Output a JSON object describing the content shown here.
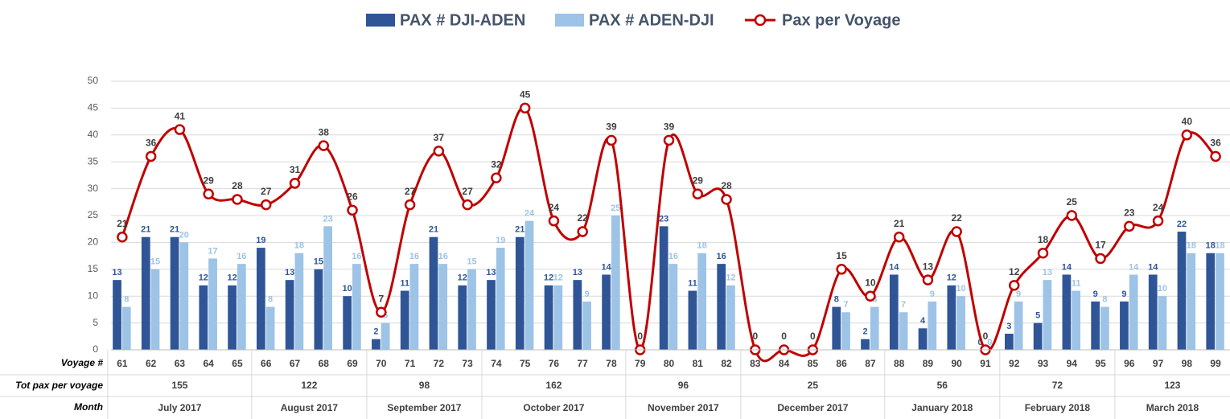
{
  "chart_data": {
    "type": "bar-line",
    "ylim": [
      0,
      50
    ],
    "yticks": [
      0,
      5,
      10,
      15,
      20,
      25,
      30,
      35,
      40,
      45,
      50
    ],
    "grid": true,
    "legend": "top",
    "row_labels": [
      "Voyage #",
      "Tot pax per voyage",
      "Month"
    ],
    "months": [
      {
        "name": "July 2017",
        "total": 155,
        "categories": [
          "61",
          "62",
          "63",
          "64",
          "65"
        ]
      },
      {
        "name": "August 2017",
        "total": 122,
        "categories": [
          "66",
          "67",
          "68",
          "69"
        ]
      },
      {
        "name": "September 2017",
        "total": 98,
        "categories": [
          "70",
          "71",
          "72",
          "73"
        ]
      },
      {
        "name": "October 2017",
        "total": 162,
        "categories": [
          "74",
          "75",
          "76",
          "77",
          "78"
        ]
      },
      {
        "name": "November 2017",
        "total": 96,
        "categories": [
          "79",
          "80",
          "81",
          "82"
        ]
      },
      {
        "name": "December 2017",
        "total": 25,
        "categories": [
          "83",
          "84",
          "85",
          "86",
          "87"
        ]
      },
      {
        "name": "January 2018",
        "total": 56,
        "categories": [
          "88",
          "89",
          "90",
          "91"
        ]
      },
      {
        "name": "February 2018",
        "total": 72,
        "categories": [
          "92",
          "93",
          "94",
          "95"
        ]
      },
      {
        "name": "March 2018",
        "total": 123,
        "categories": [
          "96",
          "97",
          "98",
          "99"
        ]
      }
    ],
    "series": [
      {
        "name": "PAX # DJI-ADEN",
        "type": "bar",
        "color": "#2f5597",
        "values": [
          13,
          21,
          21,
          12,
          12,
          19,
          13,
          15,
          10,
          2,
          11,
          21,
          12,
          13,
          21,
          12,
          13,
          14,
          null,
          23,
          11,
          16,
          null,
          null,
          null,
          8,
          2,
          14,
          4,
          12,
          0,
          3,
          5,
          14,
          9,
          9,
          14,
          22,
          18
        ]
      },
      {
        "name": "PAX # ADEN-DJI",
        "type": "bar",
        "color": "#9dc3e6",
        "values": [
          8,
          15,
          20,
          17,
          16,
          8,
          18,
          23,
          16,
          5,
          16,
          16,
          15,
          19,
          24,
          12,
          9,
          25,
          null,
          16,
          18,
          12,
          null,
          null,
          null,
          7,
          8,
          7,
          9,
          10,
          0,
          9,
          13,
          11,
          8,
          14,
          10,
          18,
          18
        ]
      },
      {
        "name": "Pax per Voyage",
        "type": "line",
        "color": "#c00000",
        "values": [
          21,
          36,
          41,
          29,
          28,
          27,
          31,
          38,
          26,
          7,
          27,
          37,
          27,
          32,
          45,
          24,
          22,
          39,
          0,
          39,
          29,
          28,
          0,
          0,
          0,
          15,
          10,
          21,
          13,
          22,
          0,
          12,
          18,
          25,
          17,
          23,
          24,
          40,
          36
        ]
      }
    ]
  }
}
